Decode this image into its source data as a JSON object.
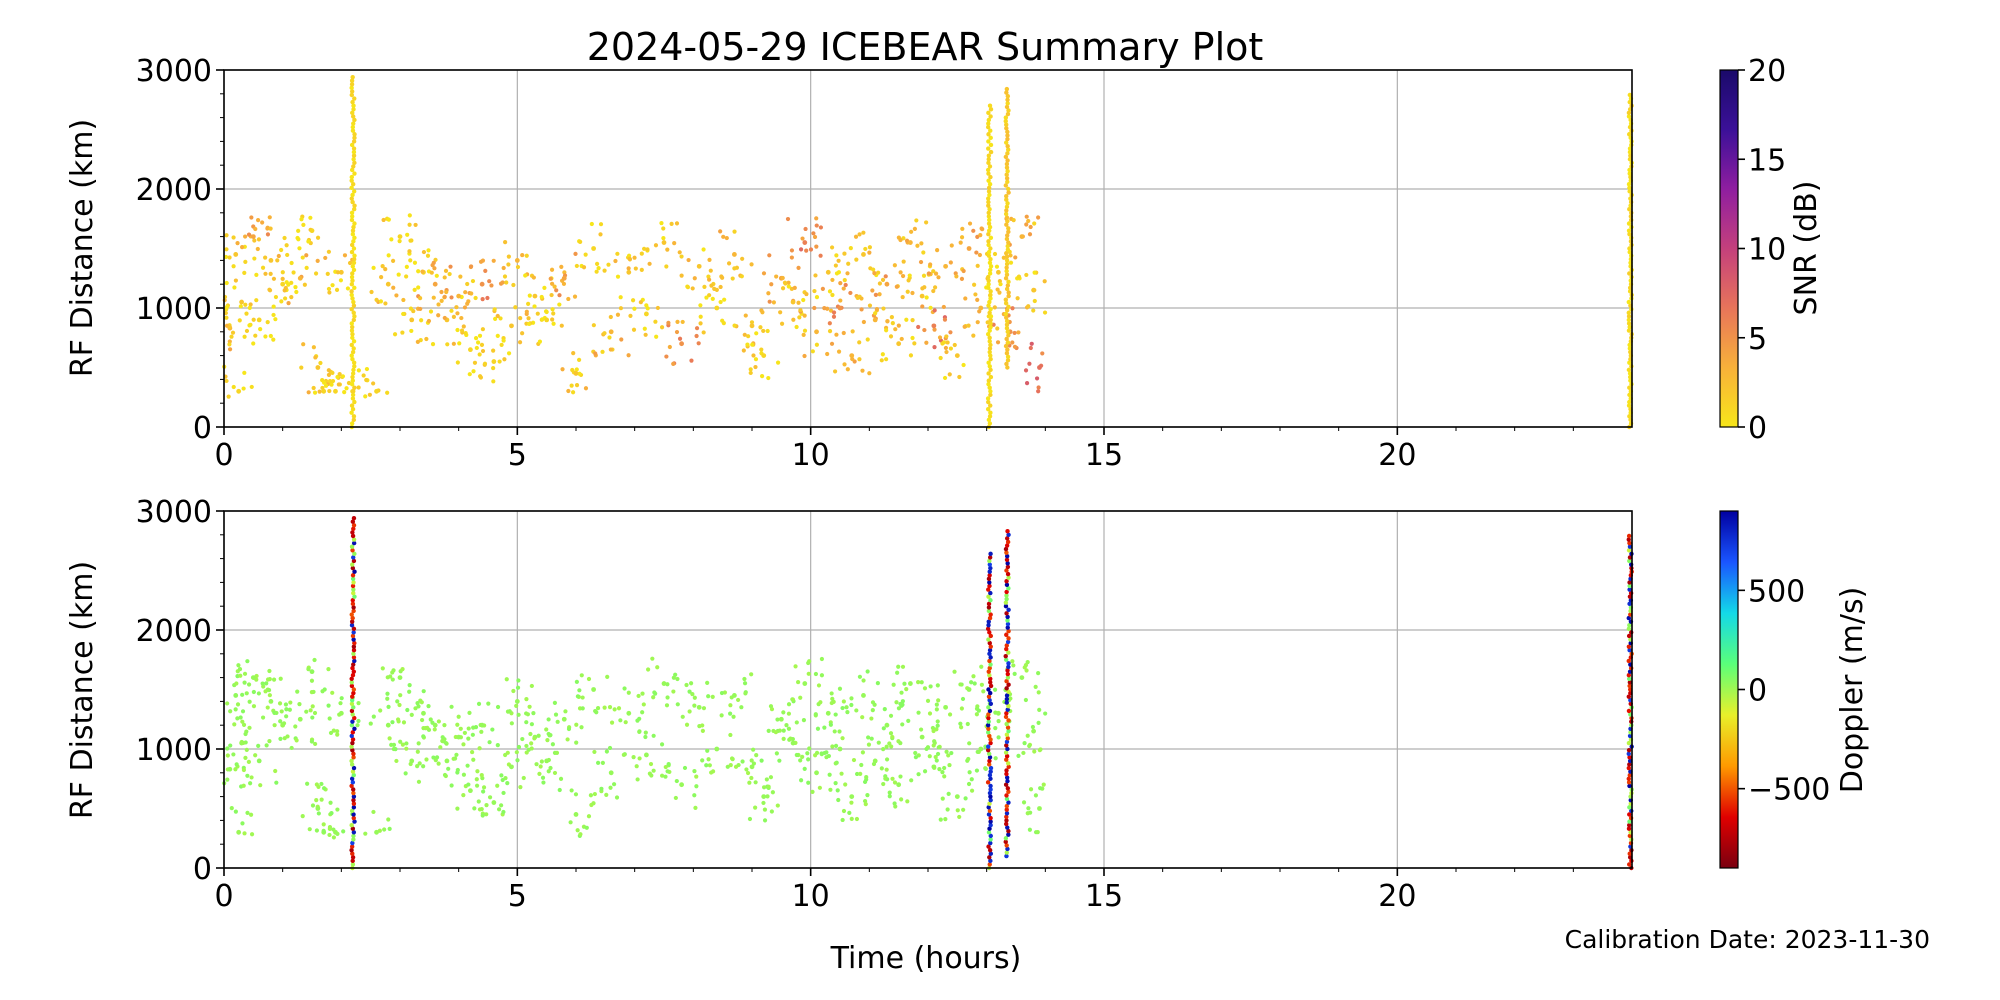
{
  "title": "2024-05-29 ICEBEAR Summary Plot",
  "footer": "Calibration Date: 2023-11-30",
  "xlabel": "Time (hours)",
  "colors": {
    "snr_colormap": [
      "#f7e61a",
      "#f8b13a",
      "#e8745a",
      "#c4407c",
      "#8f1ea0",
      "#3b1098",
      "#1a0a6a"
    ],
    "doppler_colormap": [
      "#7a0010",
      "#e00000",
      "#ff9a00",
      "#e8f02a",
      "#5aff7a",
      "#13d9e8",
      "#1a55ff",
      "#0000a0"
    ],
    "grid": "#b0b0b0"
  },
  "chart_data": [
    {
      "type": "scatter",
      "name": "snr-panel",
      "ylabel": "RF Distance (km)",
      "xlim": [
        0,
        24
      ],
      "ylim": [
        0,
        3000
      ],
      "xticks": [
        "0",
        "5",
        "10",
        "15",
        "20"
      ],
      "yticks": [
        "0",
        "1000",
        "2000",
        "3000"
      ],
      "grid": true,
      "colorbar": {
        "label": "SNR (dB)",
        "range": [
          0,
          20
        ],
        "ticks": [
          "0",
          "5",
          "10",
          "15",
          "20"
        ]
      },
      "points": [
        {
          "x": 0.1,
          "y": 830,
          "c": 3
        },
        {
          "x": 0.2,
          "y": 1450,
          "c": 2
        },
        {
          "x": 0.25,
          "y": 300,
          "c": 1
        },
        {
          "x": 0.3,
          "y": 1050,
          "c": 2
        },
        {
          "x": 0.5,
          "y": 1600,
          "c": 4
        },
        {
          "x": 0.6,
          "y": 900,
          "c": 1
        },
        {
          "x": 0.8,
          "y": 1400,
          "c": 2
        },
        {
          "x": 1.0,
          "y": 1200,
          "c": 1
        },
        {
          "x": 1.3,
          "y": 1250,
          "c": 3
        },
        {
          "x": 1.5,
          "y": 1650,
          "c": 1
        },
        {
          "x": 1.6,
          "y": 500,
          "c": 2
        },
        {
          "x": 1.7,
          "y": 300,
          "c": 1
        },
        {
          "x": 1.9,
          "y": 300,
          "c": 1
        },
        {
          "x": 2.0,
          "y": 1300,
          "c": 2
        },
        {
          "x": 2.2,
          "y": 300,
          "c": 1
        },
        {
          "x": 2.6,
          "y": 300,
          "c": 1
        },
        {
          "x": 2.8,
          "y": 1200,
          "c": 2
        },
        {
          "x": 3.0,
          "y": 1600,
          "c": 1
        },
        {
          "x": 3.2,
          "y": 900,
          "c": 2
        },
        {
          "x": 3.4,
          "y": 1300,
          "c": 1
        },
        {
          "x": 3.6,
          "y": 1200,
          "c": 4
        },
        {
          "x": 3.8,
          "y": 900,
          "c": 2
        },
        {
          "x": 4.0,
          "y": 1100,
          "c": 3
        },
        {
          "x": 4.2,
          "y": 650,
          "c": 1
        },
        {
          "x": 4.4,
          "y": 1200,
          "c": 5
        },
        {
          "x": 4.6,
          "y": 550,
          "c": 1
        },
        {
          "x": 4.9,
          "y": 850,
          "c": 2
        },
        {
          "x": 5.0,
          "y": 1400,
          "c": 3
        },
        {
          "x": 5.3,
          "y": 1100,
          "c": 2
        },
        {
          "x": 5.5,
          "y": 900,
          "c": 1
        },
        {
          "x": 5.8,
          "y": 1250,
          "c": 4
        },
        {
          "x": 6.0,
          "y": 450,
          "c": 2
        },
        {
          "x": 6.3,
          "y": 1500,
          "c": 1
        },
        {
          "x": 6.6,
          "y": 800,
          "c": 3
        },
        {
          "x": 6.9,
          "y": 1300,
          "c": 2
        },
        {
          "x": 7.2,
          "y": 950,
          "c": 1
        },
        {
          "x": 7.5,
          "y": 1550,
          "c": 2
        },
        {
          "x": 7.8,
          "y": 700,
          "c": 5
        },
        {
          "x": 8.1,
          "y": 1350,
          "c": 2
        },
        {
          "x": 8.4,
          "y": 1000,
          "c": 1
        },
        {
          "x": 8.7,
          "y": 1450,
          "c": 3
        },
        {
          "x": 9.0,
          "y": 850,
          "c": 2
        },
        {
          "x": 9.2,
          "y": 600,
          "c": 1
        },
        {
          "x": 9.5,
          "y": 1250,
          "c": 4
        },
        {
          "x": 9.7,
          "y": 1050,
          "c": 2
        },
        {
          "x": 9.9,
          "y": 1550,
          "c": 6
        },
        {
          "x": 10.1,
          "y": 800,
          "c": 3
        },
        {
          "x": 10.3,
          "y": 1300,
          "c": 2
        },
        {
          "x": 10.5,
          "y": 1000,
          "c": 5
        },
        {
          "x": 10.7,
          "y": 600,
          "c": 3
        },
        {
          "x": 10.9,
          "y": 1450,
          "c": 2
        },
        {
          "x": 11.1,
          "y": 900,
          "c": 3
        },
        {
          "x": 11.3,
          "y": 1200,
          "c": 4
        },
        {
          "x": 11.5,
          "y": 700,
          "c": 2
        },
        {
          "x": 11.7,
          "y": 1550,
          "c": 3
        },
        {
          "x": 11.9,
          "y": 1100,
          "c": 2
        },
        {
          "x": 12.1,
          "y": 850,
          "c": 6
        },
        {
          "x": 12.3,
          "y": 1350,
          "c": 3
        },
        {
          "x": 12.5,
          "y": 600,
          "c": 2
        },
        {
          "x": 12.7,
          "y": 1500,
          "c": 4
        },
        {
          "x": 12.9,
          "y": 1000,
          "c": 3
        },
        {
          "x": 13.2,
          "y": 1300,
          "c": 2
        },
        {
          "x": 13.4,
          "y": 800,
          "c": 5
        },
        {
          "x": 13.6,
          "y": 1600,
          "c": 3
        },
        {
          "x": 13.8,
          "y": 1150,
          "c": 2
        },
        {
          "x": 13.9,
          "y": 500,
          "c": 7
        }
      ],
      "vertical_bands": [
        {
          "x": 2.2,
          "ymin": 0,
          "ymax": 2950,
          "c": 1
        },
        {
          "x": 13.05,
          "ymin": 0,
          "ymax": 2700,
          "c": 1
        },
        {
          "x": 13.35,
          "ymin": 500,
          "ymax": 2850,
          "c": 2
        },
        {
          "x": 23.97,
          "ymin": 0,
          "ymax": 2800,
          "c": 1
        }
      ]
    },
    {
      "type": "scatter",
      "name": "doppler-panel",
      "ylabel": "RF Distance (km)",
      "xlim": [
        0,
        24
      ],
      "ylim": [
        0,
        3000
      ],
      "xticks": [
        "0",
        "5",
        "10",
        "15",
        "20"
      ],
      "yticks": [
        "0",
        "1000",
        "2000",
        "3000"
      ],
      "grid": true,
      "colorbar": {
        "label": "Doppler (m/s)",
        "range": [
          -900,
          900
        ],
        "ticks": [
          "−500",
          "0",
          "500"
        ]
      },
      "points": [
        {
          "x": 0.1,
          "y": 830,
          "c": 20
        },
        {
          "x": 0.2,
          "y": 1450,
          "c": 30
        },
        {
          "x": 0.25,
          "y": 300,
          "c": 10
        },
        {
          "x": 0.3,
          "y": 1050,
          "c": 20
        },
        {
          "x": 0.5,
          "y": 1600,
          "c": 20
        },
        {
          "x": 0.6,
          "y": 900,
          "c": 30
        },
        {
          "x": 0.8,
          "y": 1400,
          "c": 20
        },
        {
          "x": 1.0,
          "y": 1200,
          "c": 10
        },
        {
          "x": 1.3,
          "y": 1250,
          "c": 20
        },
        {
          "x": 1.5,
          "y": 1650,
          "c": 30
        },
        {
          "x": 1.6,
          "y": 500,
          "c": 20
        },
        {
          "x": 1.7,
          "y": 300,
          "c": 20
        },
        {
          "x": 1.9,
          "y": 300,
          "c": 20
        },
        {
          "x": 2.0,
          "y": 1300,
          "c": 20
        },
        {
          "x": 2.6,
          "y": 300,
          "c": 20
        },
        {
          "x": 2.8,
          "y": 1200,
          "c": 20
        },
        {
          "x": 3.0,
          "y": 1600,
          "c": 20
        },
        {
          "x": 3.2,
          "y": 900,
          "c": 20
        },
        {
          "x": 3.4,
          "y": 1300,
          "c": 20
        },
        {
          "x": 3.6,
          "y": 1200,
          "c": 20
        },
        {
          "x": 3.8,
          "y": 900,
          "c": 20
        },
        {
          "x": 4.0,
          "y": 1100,
          "c": 20
        },
        {
          "x": 4.2,
          "y": 650,
          "c": 20
        },
        {
          "x": 4.4,
          "y": 1200,
          "c": 20
        },
        {
          "x": 4.6,
          "y": 550,
          "c": 20
        },
        {
          "x": 4.9,
          "y": 850,
          "c": 20
        },
        {
          "x": 5.0,
          "y": 1400,
          "c": 20
        },
        {
          "x": 5.3,
          "y": 1100,
          "c": 20
        },
        {
          "x": 5.5,
          "y": 900,
          "c": 20
        },
        {
          "x": 5.8,
          "y": 1250,
          "c": 20
        },
        {
          "x": 6.0,
          "y": 450,
          "c": 20
        },
        {
          "x": 6.3,
          "y": 1500,
          "c": 20
        },
        {
          "x": 6.6,
          "y": 800,
          "c": 20
        },
        {
          "x": 6.9,
          "y": 1300,
          "c": 20
        },
        {
          "x": 7.2,
          "y": 950,
          "c": 20
        },
        {
          "x": 7.5,
          "y": 1550,
          "c": 20
        },
        {
          "x": 7.8,
          "y": 700,
          "c": 20
        },
        {
          "x": 8.1,
          "y": 1350,
          "c": 20
        },
        {
          "x": 8.4,
          "y": 1000,
          "c": 20
        },
        {
          "x": 8.7,
          "y": 1450,
          "c": 20
        },
        {
          "x": 9.0,
          "y": 850,
          "c": 20
        },
        {
          "x": 9.2,
          "y": 600,
          "c": 20
        },
        {
          "x": 9.5,
          "y": 1250,
          "c": 20
        },
        {
          "x": 9.7,
          "y": 1050,
          "c": 20
        },
        {
          "x": 9.9,
          "y": 1550,
          "c": 20
        },
        {
          "x": 10.1,
          "y": 800,
          "c": 20
        },
        {
          "x": 10.3,
          "y": 1300,
          "c": 20
        },
        {
          "x": 10.5,
          "y": 1000,
          "c": 20
        },
        {
          "x": 10.7,
          "y": 600,
          "c": 20
        },
        {
          "x": 10.9,
          "y": 1450,
          "c": 20
        },
        {
          "x": 11.1,
          "y": 900,
          "c": 20
        },
        {
          "x": 11.3,
          "y": 1200,
          "c": 20
        },
        {
          "x": 11.5,
          "y": 700,
          "c": 20
        },
        {
          "x": 11.7,
          "y": 1550,
          "c": 20
        },
        {
          "x": 11.9,
          "y": 1100,
          "c": 20
        },
        {
          "x": 12.1,
          "y": 850,
          "c": 20
        },
        {
          "x": 12.3,
          "y": 1350,
          "c": 20
        },
        {
          "x": 12.5,
          "y": 600,
          "c": 20
        },
        {
          "x": 12.7,
          "y": 1500,
          "c": 20
        },
        {
          "x": 12.9,
          "y": 1000,
          "c": 20
        },
        {
          "x": 13.2,
          "y": 1300,
          "c": 20
        },
        {
          "x": 13.6,
          "y": 1600,
          "c": 20
        },
        {
          "x": 13.8,
          "y": 1150,
          "c": 20
        },
        {
          "x": 13.9,
          "y": 500,
          "c": 20
        }
      ],
      "vertical_bands": [
        {
          "x": 2.2,
          "ymin": 0,
          "ymax": 2950,
          "mixed": true
        },
        {
          "x": 13.05,
          "ymin": 0,
          "ymax": 2650,
          "mixed": true
        },
        {
          "x": 13.35,
          "ymin": 100,
          "ymax": 2850,
          "mixed": true
        },
        {
          "x": 23.97,
          "ymin": 0,
          "ymax": 2800,
          "mixed": true
        }
      ]
    }
  ]
}
